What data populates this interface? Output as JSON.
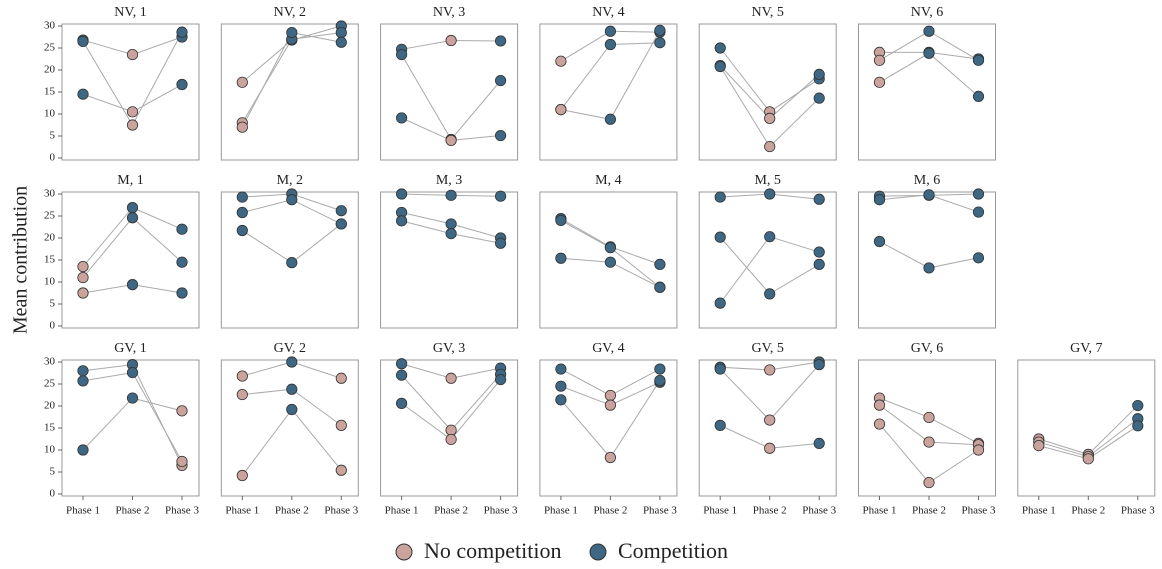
{
  "ylabel": "Mean contribution",
  "legend": [
    {
      "name": "No competition",
      "color": "#c9a39c"
    },
    {
      "name": "Competition",
      "color": "#3d6783"
    }
  ],
  "chart_data": [
    {
      "type": "line",
      "title": "NV, 1",
      "ylim": [
        0,
        30
      ],
      "yticks": [
        0,
        5,
        10,
        15,
        20,
        25,
        30
      ],
      "series": [
        {
          "values": [
            26.8,
            23.5,
            27.5
          ],
          "competition": [
            true,
            false,
            true
          ]
        },
        {
          "values": [
            26.5,
            7.5,
            28.6
          ],
          "competition": [
            true,
            false,
            true
          ]
        },
        {
          "values": [
            14.5,
            10.5,
            16.7
          ],
          "competition": [
            true,
            false,
            true
          ]
        }
      ]
    },
    {
      "type": "line",
      "title": "NV, 2",
      "ylim": [
        0,
        30
      ],
      "series": [
        {
          "values": [
            17.2,
            26.8,
            30
          ],
          "competition": [
            false,
            true,
            true
          ]
        },
        {
          "values": [
            8,
            27,
            28.5
          ],
          "competition": [
            false,
            true,
            true
          ]
        },
        {
          "values": [
            7,
            28.5,
            26.3
          ],
          "competition": [
            false,
            true,
            true
          ]
        }
      ]
    },
    {
      "type": "line",
      "title": "NV, 3",
      "ylim": [
        0,
        30
      ],
      "series": [
        {
          "values": [
            24.7,
            26.7,
            26.6
          ],
          "competition": [
            true,
            false,
            true
          ]
        },
        {
          "values": [
            23.5,
            4.2,
            17.6
          ],
          "competition": [
            true,
            false,
            true
          ]
        },
        {
          "values": [
            9.1,
            4,
            5.1
          ],
          "competition": [
            true,
            false,
            true
          ]
        }
      ]
    },
    {
      "type": "line",
      "title": "NV, 4",
      "ylim": [
        0,
        30
      ],
      "series": [
        {
          "values": [
            22,
            28.8,
            28.6
          ],
          "competition": [
            false,
            true,
            true
          ]
        },
        {
          "values": [
            11,
            25.8,
            26.2
          ],
          "competition": [
            false,
            true,
            true
          ]
        },
        {
          "values": [
            11,
            8.8,
            29
          ],
          "competition": [
            false,
            true,
            true
          ]
        }
      ]
    },
    {
      "type": "line",
      "title": "NV, 5",
      "ylim": [
        0,
        30
      ],
      "series": [
        {
          "values": [
            25,
            10.5,
            18
          ],
          "competition": [
            true,
            false,
            true
          ]
        },
        {
          "values": [
            21,
            9,
            19
          ],
          "competition": [
            true,
            false,
            true
          ]
        },
        {
          "values": [
            20.8,
            2.6,
            13.6
          ],
          "competition": [
            true,
            false,
            true
          ]
        }
      ]
    },
    {
      "type": "line",
      "title": "NV, 6",
      "ylim": [
        0,
        30
      ],
      "series": [
        {
          "values": [
            24,
            24,
            22.5
          ],
          "competition": [
            false,
            true,
            true
          ]
        },
        {
          "values": [
            22.2,
            28.8,
            22.2
          ],
          "competition": [
            false,
            true,
            true
          ]
        },
        {
          "values": [
            17.2,
            23.8,
            14
          ],
          "competition": [
            false,
            true,
            true
          ]
        }
      ]
    },
    {
      "type": "line",
      "title": "M, 1",
      "ylim": [
        0,
        30
      ],
      "yticks": [
        0,
        5,
        10,
        15,
        20,
        25,
        30
      ],
      "series": [
        {
          "values": [
            13.5,
            26.9,
            22
          ],
          "competition": [
            false,
            true,
            true
          ]
        },
        {
          "values": [
            11,
            24.6,
            14.5
          ],
          "competition": [
            false,
            true,
            true
          ]
        },
        {
          "values": [
            7.5,
            9.4,
            7.5
          ],
          "competition": [
            false,
            true,
            true
          ]
        }
      ]
    },
    {
      "type": "line",
      "title": "M, 2",
      "ylim": [
        0,
        30
      ],
      "series": [
        {
          "values": [
            29.3,
            30,
            26.2
          ],
          "competition": [
            true,
            true,
            true
          ]
        },
        {
          "values": [
            25.8,
            28.7,
            23.2
          ],
          "competition": [
            true,
            true,
            true
          ]
        },
        {
          "values": [
            21.7,
            14.4,
            23.2
          ],
          "competition": [
            true,
            true,
            true
          ]
        }
      ]
    },
    {
      "type": "line",
      "title": "M, 3",
      "ylim": [
        0,
        30
      ],
      "series": [
        {
          "values": [
            30,
            29.7,
            29.5
          ],
          "competition": [
            true,
            true,
            true
          ]
        },
        {
          "values": [
            25.8,
            23.2,
            20
          ],
          "competition": [
            true,
            true,
            true
          ]
        },
        {
          "values": [
            23.9,
            21,
            18.8
          ],
          "competition": [
            true,
            true,
            true
          ]
        }
      ]
    },
    {
      "type": "line",
      "title": "M, 4",
      "ylim": [
        0,
        30
      ],
      "series": [
        {
          "values": [
            24.4,
            18,
            14
          ],
          "competition": [
            true,
            true,
            true
          ]
        },
        {
          "values": [
            24,
            17.8,
            8.8
          ],
          "competition": [
            true,
            true,
            true
          ]
        },
        {
          "values": [
            15.4,
            14.5,
            8.8
          ],
          "competition": [
            true,
            true,
            true
          ]
        }
      ]
    },
    {
      "type": "line",
      "title": "M, 5",
      "ylim": [
        0,
        30
      ],
      "series": [
        {
          "values": [
            29.3,
            30,
            28.8
          ],
          "competition": [
            true,
            true,
            true
          ]
        },
        {
          "values": [
            20.2,
            7.3,
            14
          ],
          "competition": [
            true,
            true,
            true
          ]
        },
        {
          "values": [
            5.2,
            20.3,
            16.8
          ],
          "competition": [
            true,
            true,
            true
          ]
        }
      ]
    },
    {
      "type": "line",
      "title": "M, 6",
      "ylim": [
        0,
        30
      ],
      "series": [
        {
          "values": [
            29.5,
            29.7,
            30
          ],
          "competition": [
            true,
            true,
            true
          ]
        },
        {
          "values": [
            28.7,
            29.8,
            25.9
          ],
          "competition": [
            true,
            true,
            true
          ]
        },
        {
          "values": [
            19.2,
            13.2,
            15.5
          ],
          "competition": [
            true,
            true,
            true
          ]
        }
      ]
    },
    {
      "type": "line",
      "title": "GV, 1",
      "ylim": [
        0,
        30
      ],
      "yticks": [
        0,
        5,
        10,
        15,
        20,
        25,
        30
      ],
      "categories": [
        "Phase 1",
        "Phase 2",
        "Phase 3"
      ],
      "series": [
        {
          "values": [
            28,
            29.4,
            6.5
          ],
          "competition": [
            true,
            true,
            false
          ]
        },
        {
          "values": [
            25.7,
            27.6,
            7.4
          ],
          "competition": [
            true,
            true,
            false
          ]
        },
        {
          "values": [
            10,
            21.8,
            18.9
          ],
          "competition": [
            true,
            true,
            false
          ]
        }
      ]
    },
    {
      "type": "line",
      "title": "GV, 2",
      "ylim": [
        0,
        30
      ],
      "categories": [
        "Phase 1",
        "Phase 2",
        "Phase 3"
      ],
      "series": [
        {
          "values": [
            26.8,
            30,
            26.3
          ],
          "competition": [
            false,
            true,
            false
          ]
        },
        {
          "values": [
            22.6,
            23.8,
            15.6
          ],
          "competition": [
            false,
            true,
            false
          ]
        },
        {
          "values": [
            4.2,
            19.2,
            5.4
          ],
          "competition": [
            false,
            true,
            false
          ]
        }
      ]
    },
    {
      "type": "line",
      "title": "GV, 3",
      "ylim": [
        0,
        30
      ],
      "categories": [
        "Phase 1",
        "Phase 2",
        "Phase 3"
      ],
      "series": [
        {
          "values": [
            29.6,
            26.3,
            28.6
          ],
          "competition": [
            true,
            false,
            true
          ]
        },
        {
          "values": [
            27,
            14.5,
            27.2
          ],
          "competition": [
            true,
            false,
            true
          ]
        },
        {
          "values": [
            20.6,
            12.4,
            26
          ],
          "competition": [
            true,
            false,
            true
          ]
        }
      ]
    },
    {
      "type": "line",
      "title": "GV, 4",
      "ylim": [
        0,
        30
      ],
      "categories": [
        "Phase 1",
        "Phase 2",
        "Phase 3"
      ],
      "series": [
        {
          "values": [
            28.4,
            22.4,
            28.4
          ],
          "competition": [
            true,
            false,
            true
          ]
        },
        {
          "values": [
            24.5,
            20.2,
            25.4
          ],
          "competition": [
            true,
            false,
            true
          ]
        },
        {
          "values": [
            21.4,
            8.3,
            25.8
          ],
          "competition": [
            true,
            false,
            true
          ]
        }
      ]
    },
    {
      "type": "line",
      "title": "GV, 5",
      "ylim": [
        0,
        30
      ],
      "categories": [
        "Phase 1",
        "Phase 2",
        "Phase 3"
      ],
      "series": [
        {
          "values": [
            28.8,
            28.2,
            30
          ],
          "competition": [
            true,
            false,
            true
          ]
        },
        {
          "values": [
            28.4,
            16.8,
            29.4
          ],
          "competition": [
            true,
            false,
            true
          ]
        },
        {
          "values": [
            15.6,
            10.4,
            11.5
          ],
          "competition": [
            true,
            false,
            true
          ]
        }
      ]
    },
    {
      "type": "line",
      "title": "GV, 6",
      "ylim": [
        0,
        30
      ],
      "categories": [
        "Phase 1",
        "Phase 2",
        "Phase 3"
      ],
      "series": [
        {
          "values": [
            21.8,
            17.4,
            11.5
          ],
          "competition": [
            false,
            false,
            false
          ]
        },
        {
          "values": [
            20.2,
            11.8,
            11.2
          ],
          "competition": [
            false,
            false,
            false
          ]
        },
        {
          "values": [
            15.9,
            2.6,
            10
          ],
          "competition": [
            false,
            false,
            false
          ]
        }
      ]
    },
    {
      "type": "line",
      "title": "GV, 7",
      "ylim": [
        0,
        30
      ],
      "categories": [
        "Phase 1",
        "Phase 2",
        "Phase 3"
      ],
      "series": [
        {
          "values": [
            12.5,
            9,
            20.1
          ],
          "competition": [
            false,
            false,
            true
          ]
        },
        {
          "values": [
            11.8,
            8.5,
            17.1
          ],
          "competition": [
            false,
            false,
            true
          ]
        },
        {
          "values": [
            11,
            8,
            15.5
          ],
          "competition": [
            false,
            false,
            true
          ]
        }
      ]
    }
  ]
}
